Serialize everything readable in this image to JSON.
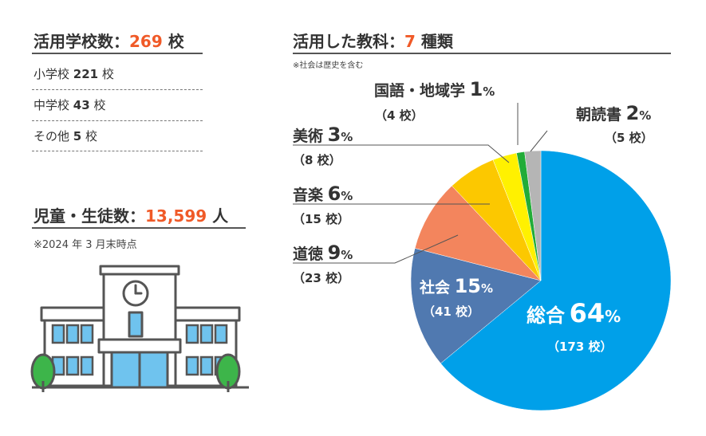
{
  "schools": {
    "title_prefix": "活用学校数：",
    "total": "269",
    "unit": "校",
    "items": [
      {
        "label": "小学校",
        "count": "221",
        "unit": "校"
      },
      {
        "label": "中学校",
        "count": "43",
        "unit": "校"
      },
      {
        "label": "その他",
        "count": "5",
        "unit": "校"
      }
    ]
  },
  "students": {
    "title_prefix": "児童・生徒数：",
    "total": "13,599",
    "unit": "人",
    "note": "※2024 年 3 月末時点"
  },
  "subjects": {
    "title_prefix": "活用した教科：",
    "total": "7",
    "unit": "種類",
    "note": "※社会は歴史を含む"
  },
  "chart_data": {
    "type": "pie",
    "start": "12 o'clock",
    "direction": "clockwise",
    "slices": [
      {
        "name": "総合",
        "percent": 64,
        "pct_label": "64",
        "pct_unit": "%",
        "count_label": "（173 校）",
        "schools": 173,
        "color": "#00a0e9"
      },
      {
        "name": "社会",
        "percent": 15,
        "pct_label": "15",
        "pct_unit": "%",
        "count_label": "（41 校）",
        "schools": 41,
        "color": "#5079b0"
      },
      {
        "name": "道徳",
        "percent": 9,
        "pct_label": "9",
        "pct_unit": "%",
        "count_label": "（23 校）",
        "schools": 23,
        "color": "#f3855d"
      },
      {
        "name": "音楽",
        "percent": 6,
        "pct_label": "6",
        "pct_unit": "%",
        "count_label": "（15 校）",
        "schools": 15,
        "color": "#fcc800"
      },
      {
        "name": "美術",
        "percent": 3,
        "pct_label": "3",
        "pct_unit": "%",
        "count_label": "（8 校）",
        "schools": 8,
        "color": "#fff100"
      },
      {
        "name": "国語・地域学",
        "percent": 1,
        "pct_label": "1",
        "pct_unit": "%",
        "count_label": "（4 校）",
        "schools": 4,
        "color": "#22ac38"
      },
      {
        "name": "朝読書",
        "percent": 2,
        "pct_label": "2",
        "pct_unit": "%",
        "count_label": "（5 校）",
        "schools": 5,
        "color": "#b5b5b5"
      }
    ]
  },
  "colors": {
    "accent": "#f05a28",
    "building_main": "#6fc3ee",
    "tree": "#3db54a",
    "outline": "#555555"
  }
}
